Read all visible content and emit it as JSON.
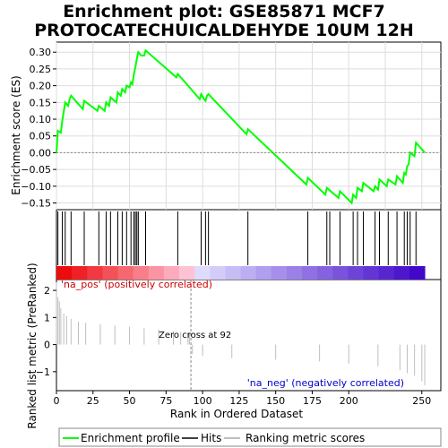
{
  "title_lines": [
    "Enrichment plot: GSE85871 MCF7",
    "PROTOCATECHUICALDEHYDE 10UM 12H"
  ],
  "chart_data": [
    {
      "type": "line",
      "panel": "enrichment",
      "ylabel": "Enrichment score (ES)",
      "ylim": [
        -0.17,
        0.33
      ],
      "yticks": [
        -0.15,
        -0.1,
        -0.05,
        0.0,
        0.05,
        0.1,
        0.15,
        0.2,
        0.25,
        0.3
      ],
      "ytick_labels": [
        "−0.15",
        "−0.10",
        "−0.05",
        "0.00",
        "0.05",
        "0.10",
        "0.15",
        "0.20",
        "0.25",
        "0.30"
      ],
      "xlim": [
        0,
        263
      ],
      "series": [
        {
          "name": "Enrichment profile",
          "color": "#00ff00",
          "x": [
            0,
            1,
            3,
            4,
            6,
            8,
            9,
            10,
            18,
            19,
            28,
            29,
            33,
            34,
            36,
            37,
            41,
            42,
            44,
            45,
            47,
            48,
            50,
            51,
            52,
            53,
            54,
            55,
            56,
            58,
            60,
            61,
            82,
            83,
            98,
            99,
            101,
            102,
            103,
            104,
            130,
            131,
            171,
            172,
            184,
            185,
            193,
            194,
            202,
            203,
            205,
            206,
            209,
            210,
            217,
            218,
            220,
            221,
            226,
            227,
            232,
            233,
            237,
            238,
            239,
            240,
            241,
            242,
            245,
            246,
            252
          ],
          "y": [
            0.0,
            0.065,
            0.06,
            0.095,
            0.15,
            0.14,
            0.16,
            0.17,
            0.13,
            0.155,
            0.125,
            0.14,
            0.125,
            0.15,
            0.14,
            0.165,
            0.15,
            0.18,
            0.17,
            0.19,
            0.18,
            0.2,
            0.195,
            0.21,
            0.205,
            0.235,
            0.255,
            0.28,
            0.3,
            0.29,
            0.29,
            0.305,
            0.225,
            0.235,
            0.16,
            0.175,
            0.16,
            0.155,
            0.17,
            0.175,
            0.055,
            0.07,
            -0.095,
            -0.075,
            -0.125,
            -0.105,
            -0.135,
            -0.115,
            -0.15,
            -0.125,
            -0.135,
            -0.105,
            -0.115,
            -0.09,
            -0.115,
            -0.1,
            -0.11,
            -0.08,
            -0.1,
            -0.08,
            -0.095,
            -0.07,
            -0.09,
            -0.06,
            -0.065,
            -0.04,
            -0.035,
            0.0,
            -0.01,
            0.03,
            0.0
          ]
        }
      ]
    },
    {
      "type": "hits",
      "panel": "hits",
      "series": [
        {
          "name": "Hits",
          "color": "#000000",
          "x": [
            1,
            4,
            6,
            10,
            19,
            29,
            34,
            37,
            42,
            45,
            48,
            51,
            53,
            54,
            55,
            56,
            61,
            83,
            99,
            102,
            104,
            131,
            172,
            185,
            187,
            194,
            203,
            206,
            210,
            218,
            221,
            227,
            233,
            238,
            240,
            242,
            246
          ]
        }
      ]
    },
    {
      "type": "bar",
      "panel": "ranking",
      "xlabel": "Rank in Ordered Dataset",
      "ylabel": "Ranked list metric (PreRanked)",
      "xlim": [
        0,
        263
      ],
      "ylim": [
        -1.7,
        2.4
      ],
      "xticks": [
        0,
        25,
        50,
        75,
        100,
        125,
        150,
        175,
        200,
        250
      ],
      "yticks": [
        -1,
        0,
        1,
        2
      ],
      "ytick_labels": [
        "−1",
        "0",
        "1",
        "2"
      ],
      "zero_cross": 92,
      "annotations": {
        "positive": "'na_pos' (positively correlated)",
        "negative": "'na_neg' (negatively correlated)",
        "zero_cross": "Zero cross at 92"
      },
      "series": [
        {
          "name": "Ranking metric scores",
          "color": "#bebebe",
          "x": [
            0,
            1,
            2,
            3,
            5,
            7,
            10,
            15,
            20,
            30,
            40,
            50,
            60,
            70,
            80,
            85,
            90,
            91,
            92,
            93,
            100,
            120,
            150,
            180,
            200,
            220,
            235,
            240,
            245,
            250,
            252
          ],
          "values": [
            2.3,
            1.75,
            1.6,
            1.35,
            1.15,
            1.05,
            0.95,
            0.85,
            0.8,
            0.75,
            0.7,
            0.66,
            0.6,
            0.55,
            0.5,
            0.47,
            0.45,
            0.44,
            -0.02,
            -0.35,
            -0.42,
            -0.5,
            -0.56,
            -0.62,
            -0.7,
            -0.8,
            -0.95,
            -1.05,
            -1.15,
            -1.35,
            -1.5
          ]
        }
      ]
    }
  ],
  "legend": [
    {
      "label": "Enrichment profile",
      "color": "#00ff00"
    },
    {
      "label": "Hits",
      "color": "#000000"
    },
    {
      "label": "Ranking metric scores",
      "color": "#bebebe"
    }
  ]
}
